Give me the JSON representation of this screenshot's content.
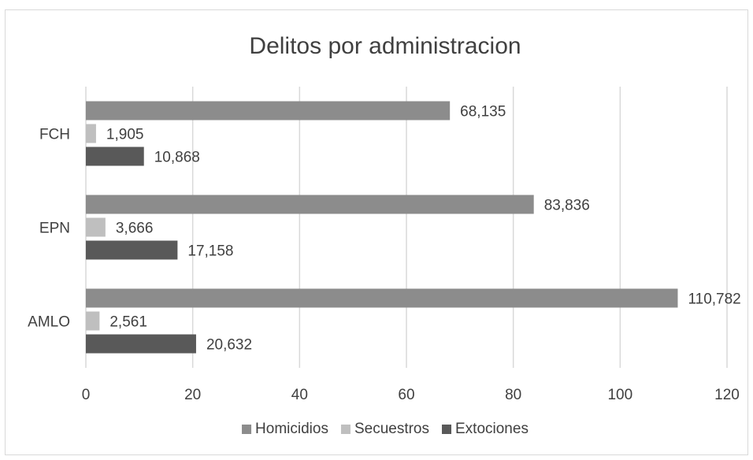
{
  "chart_data": {
    "type": "bar",
    "orientation": "horizontal",
    "title": "Delitos por administracion",
    "categories": [
      "FCH",
      "EPN",
      "AMLO"
    ],
    "series": [
      {
        "name": "Homicidios",
        "values": [
          68.135,
          83.836,
          110.782
        ],
        "labels": [
          "68,135",
          "83,836",
          "110,782"
        ],
        "color": "#8c8c8c"
      },
      {
        "name": "Secuestros",
        "values": [
          1.905,
          3.666,
          2.561
        ],
        "labels": [
          "1,905",
          "3,666",
          "2,561"
        ],
        "color": "#bfbfbf"
      },
      {
        "name": "Extociones",
        "values": [
          10.868,
          17.158,
          20.632
        ],
        "labels": [
          "10,868",
          "17,158",
          "20,632"
        ],
        "color": "#595959"
      }
    ],
    "xlim": [
      0,
      120
    ],
    "xticks": [
      "0",
      "20",
      "40",
      "60",
      "80",
      "100",
      "120"
    ],
    "grid": true,
    "legend": "bottom",
    "gridline_color": "#d9d9d9"
  }
}
